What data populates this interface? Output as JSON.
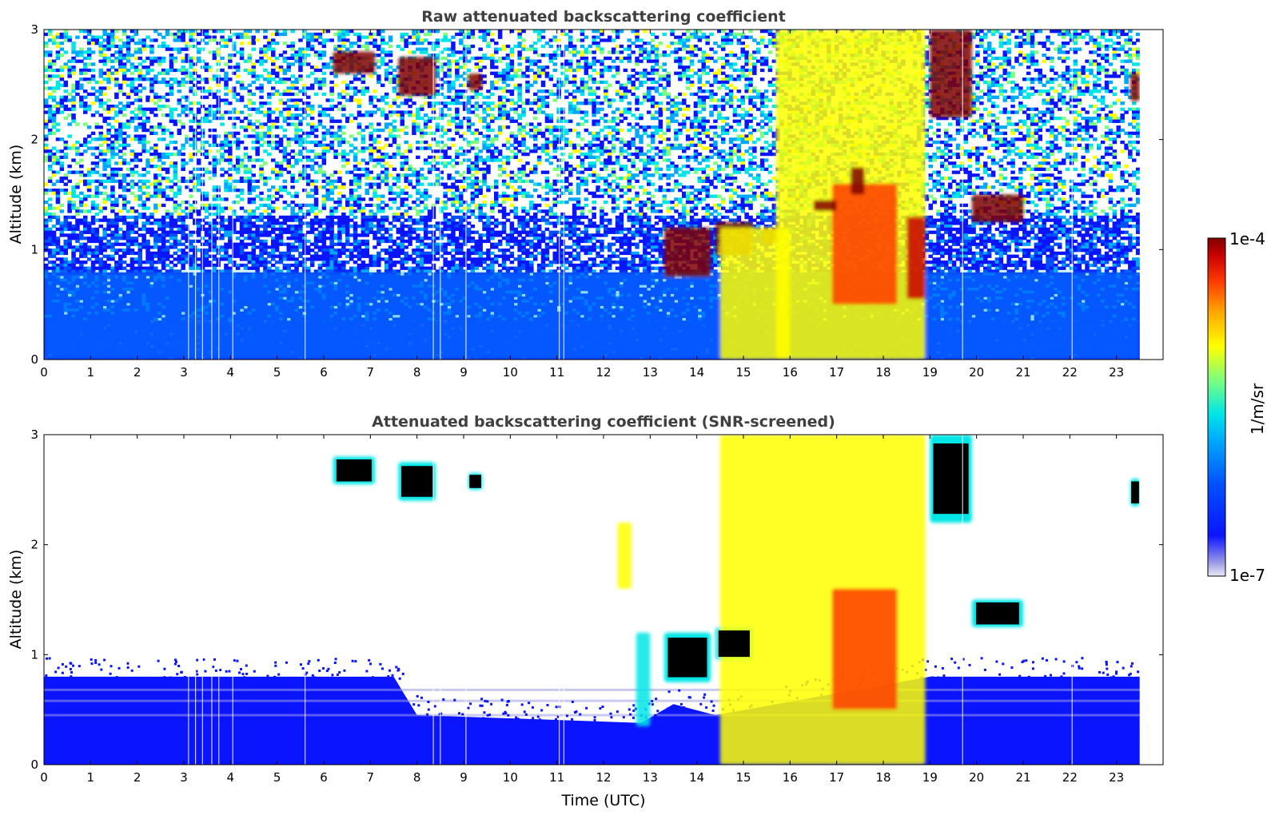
{
  "chart_data": [
    {
      "type": "heatmap",
      "title": "Raw attenuated backscattering coefficient",
      "xlabel": "",
      "ylabel": "Altitude (km)",
      "xlim": [
        0,
        24
      ],
      "ylim": [
        0,
        3
      ],
      "xticks": [
        "0",
        "1",
        "2",
        "3",
        "4",
        "5",
        "6",
        "7",
        "8",
        "9",
        "10",
        "11",
        "12",
        "13",
        "14",
        "15",
        "16",
        "17",
        "18",
        "19",
        "20",
        "21",
        "22",
        "23"
      ],
      "yticks": [
        "0",
        "1",
        "2",
        "3"
      ],
      "data_end_hour": 23.5,
      "background_noise": "dense speckle at low-moderate values over the whole range, strongest below 0.8 km",
      "features": [
        {
          "kind": "aerosol_layer",
          "t_start": 0,
          "t_end": 23.5,
          "alt_bottom_km": 0,
          "alt_top_km": 0.8,
          "level": "1e-6"
        },
        {
          "kind": "thin_cloud",
          "t_start": 6.2,
          "t_end": 7.1,
          "alt_bottom_km": 2.6,
          "alt_top_km": 2.8,
          "level": "1e-4"
        },
        {
          "kind": "thin_cloud",
          "t_start": 7.6,
          "t_end": 8.4,
          "alt_bottom_km": 2.4,
          "alt_top_km": 2.75,
          "level": "1e-4"
        },
        {
          "kind": "thin_cloud",
          "t_start": 9.1,
          "t_end": 9.4,
          "alt_bottom_km": 2.45,
          "alt_top_km": 2.6,
          "level": "1e-4"
        },
        {
          "kind": "thin_cloud",
          "t_start": 13.3,
          "t_end": 14.3,
          "alt_bottom_km": 0.75,
          "alt_top_km": 1.2,
          "level": "1e-4"
        },
        {
          "kind": "thin_cloud",
          "t_start": 14.4,
          "t_end": 15.2,
          "alt_bottom_km": 0.95,
          "alt_top_km": 1.25,
          "level": "1e-4"
        },
        {
          "kind": "thin_cloud",
          "t_start": 15.4,
          "t_end": 15.8,
          "alt_bottom_km": 1.05,
          "alt_top_km": 1.2,
          "level": "1e-4"
        },
        {
          "kind": "thin_cloud",
          "t_start": 19.0,
          "t_end": 19.9,
          "alt_bottom_km": 2.2,
          "alt_top_km": 3.0,
          "level": "1e-4"
        },
        {
          "kind": "thin_cloud",
          "t_start": 19.9,
          "t_end": 21.0,
          "alt_bottom_km": 1.25,
          "alt_top_km": 1.5,
          "level": "1e-4"
        },
        {
          "kind": "thin_cloud",
          "t_start": 23.3,
          "t_end": 23.5,
          "alt_bottom_km": 2.35,
          "alt_top_km": 2.6,
          "level": "1e-4"
        },
        {
          "kind": "convective_plume",
          "t_start": 14.5,
          "t_end": 16.0,
          "alt_bottom_km": 0,
          "alt_top_km": 1.2,
          "level": "1e-5"
        },
        {
          "kind": "convective_plume",
          "t_start": 15.7,
          "t_end": 18.9,
          "alt_bottom_km": 0,
          "alt_top_km": 3.0,
          "level": "1e-5"
        },
        {
          "kind": "cloud_core",
          "t_start": 16.9,
          "t_end": 18.3,
          "alt_bottom_km": 0.5,
          "alt_top_km": 1.6,
          "level": "3e-5"
        },
        {
          "kind": "cloud_core",
          "t_start": 16.5,
          "t_end": 17.0,
          "alt_bottom_km": 1.35,
          "alt_top_km": 1.45,
          "level": "1e-4"
        },
        {
          "kind": "cloud_core",
          "t_start": 17.3,
          "t_end": 17.6,
          "alt_bottom_km": 1.5,
          "alt_top_km": 1.75,
          "level": "1e-4"
        },
        {
          "kind": "cloud_core",
          "t_start": 18.5,
          "t_end": 18.9,
          "alt_bottom_km": 0.55,
          "alt_top_km": 1.3,
          "level": "6e-5"
        }
      ]
    },
    {
      "type": "heatmap",
      "title": "Attenuated backscattering coefficient (SNR-screened)",
      "xlabel": "Time (UTC)",
      "ylabel": "Altitude (km)",
      "xlim": [
        0,
        24
      ],
      "ylim": [
        0,
        3
      ],
      "xticks": [
        "0",
        "1",
        "2",
        "3",
        "4",
        "5",
        "6",
        "7",
        "8",
        "9",
        "10",
        "11",
        "12",
        "13",
        "14",
        "15",
        "16",
        "17",
        "18",
        "19",
        "20",
        "21",
        "22",
        "23"
      ],
      "yticks": [
        "0",
        "1",
        "2",
        "3"
      ],
      "data_end_hour": 23.5,
      "screened_boundary_layer_top_km": [
        {
          "t": 0,
          "alt": 0.8
        },
        {
          "t": 7.5,
          "alt": 0.8
        },
        {
          "t": 8.0,
          "alt": 0.45
        },
        {
          "t": 12.8,
          "alt": 0.38
        },
        {
          "t": 13.5,
          "alt": 0.55
        },
        {
          "t": 14.4,
          "alt": 0.45
        },
        {
          "t": 19.0,
          "alt": 0.8
        },
        {
          "t": 23.5,
          "alt": 0.8
        }
      ],
      "clipped_cells": "values above 1e-4 shown in black inside the cloud layers",
      "features": [
        {
          "kind": "screened_cloud",
          "t_start": 6.2,
          "t_end": 7.1,
          "alt_bottom_km": 2.55,
          "alt_top_km": 2.8,
          "level": "clipped"
        },
        {
          "kind": "screened_cloud",
          "t_start": 7.6,
          "t_end": 8.4,
          "alt_bottom_km": 2.4,
          "alt_top_km": 2.75,
          "level": "clipped"
        },
        {
          "kind": "screened_cloud",
          "t_start": 9.1,
          "t_end": 9.4,
          "alt_bottom_km": 2.5,
          "alt_top_km": 2.65,
          "level": "clipped"
        },
        {
          "kind": "screened_plume",
          "t_start": 12.3,
          "t_end": 12.6,
          "alt_bottom_km": 1.6,
          "alt_top_km": 2.2,
          "level": "1e-5"
        },
        {
          "kind": "screened_plume",
          "t_start": 12.7,
          "t_end": 13.0,
          "alt_bottom_km": 0.35,
          "alt_top_km": 1.2,
          "level": "3e-6"
        },
        {
          "kind": "screened_cloud",
          "t_start": 13.3,
          "t_end": 14.3,
          "alt_bottom_km": 0.75,
          "alt_top_km": 1.2,
          "level": "clipped"
        },
        {
          "kind": "screened_cloud",
          "t_start": 14.4,
          "t_end": 15.2,
          "alt_bottom_km": 0.95,
          "alt_top_km": 1.25,
          "level": "clipped"
        },
        {
          "kind": "convective_plume",
          "t_start": 14.5,
          "t_end": 18.9,
          "alt_bottom_km": 0,
          "alt_top_km": 3.0,
          "level": "1e-5"
        },
        {
          "kind": "cloud_core",
          "t_start": 16.9,
          "t_end": 18.3,
          "alt_bottom_km": 0.5,
          "alt_top_km": 1.6,
          "level": "3e-5"
        },
        {
          "kind": "screened_cloud",
          "t_start": 19.0,
          "t_end": 19.9,
          "alt_bottom_km": 2.2,
          "alt_top_km": 3.0,
          "level": "clipped"
        },
        {
          "kind": "screened_cloud",
          "t_start": 19.9,
          "t_end": 21.0,
          "alt_bottom_km": 1.25,
          "alt_top_km": 1.5,
          "level": "clipped"
        },
        {
          "kind": "screened_cloud",
          "t_start": 23.3,
          "t_end": 23.5,
          "alt_bottom_km": 2.35,
          "alt_top_km": 2.6,
          "level": "clipped"
        }
      ]
    }
  ],
  "colorbar": {
    "label": "1/m/sr",
    "max_label": "1e-4",
    "min_label": "1e-7",
    "colormap": "jet",
    "stops": [
      "#e9e9f5",
      "#9a9ae6",
      "#0a14ff",
      "#0050ff",
      "#00a8ff",
      "#00e6e6",
      "#7dff7d",
      "#ffff00",
      "#ffa800",
      "#ff3c00",
      "#c80000",
      "#800000"
    ],
    "clip_color": "#000000"
  }
}
